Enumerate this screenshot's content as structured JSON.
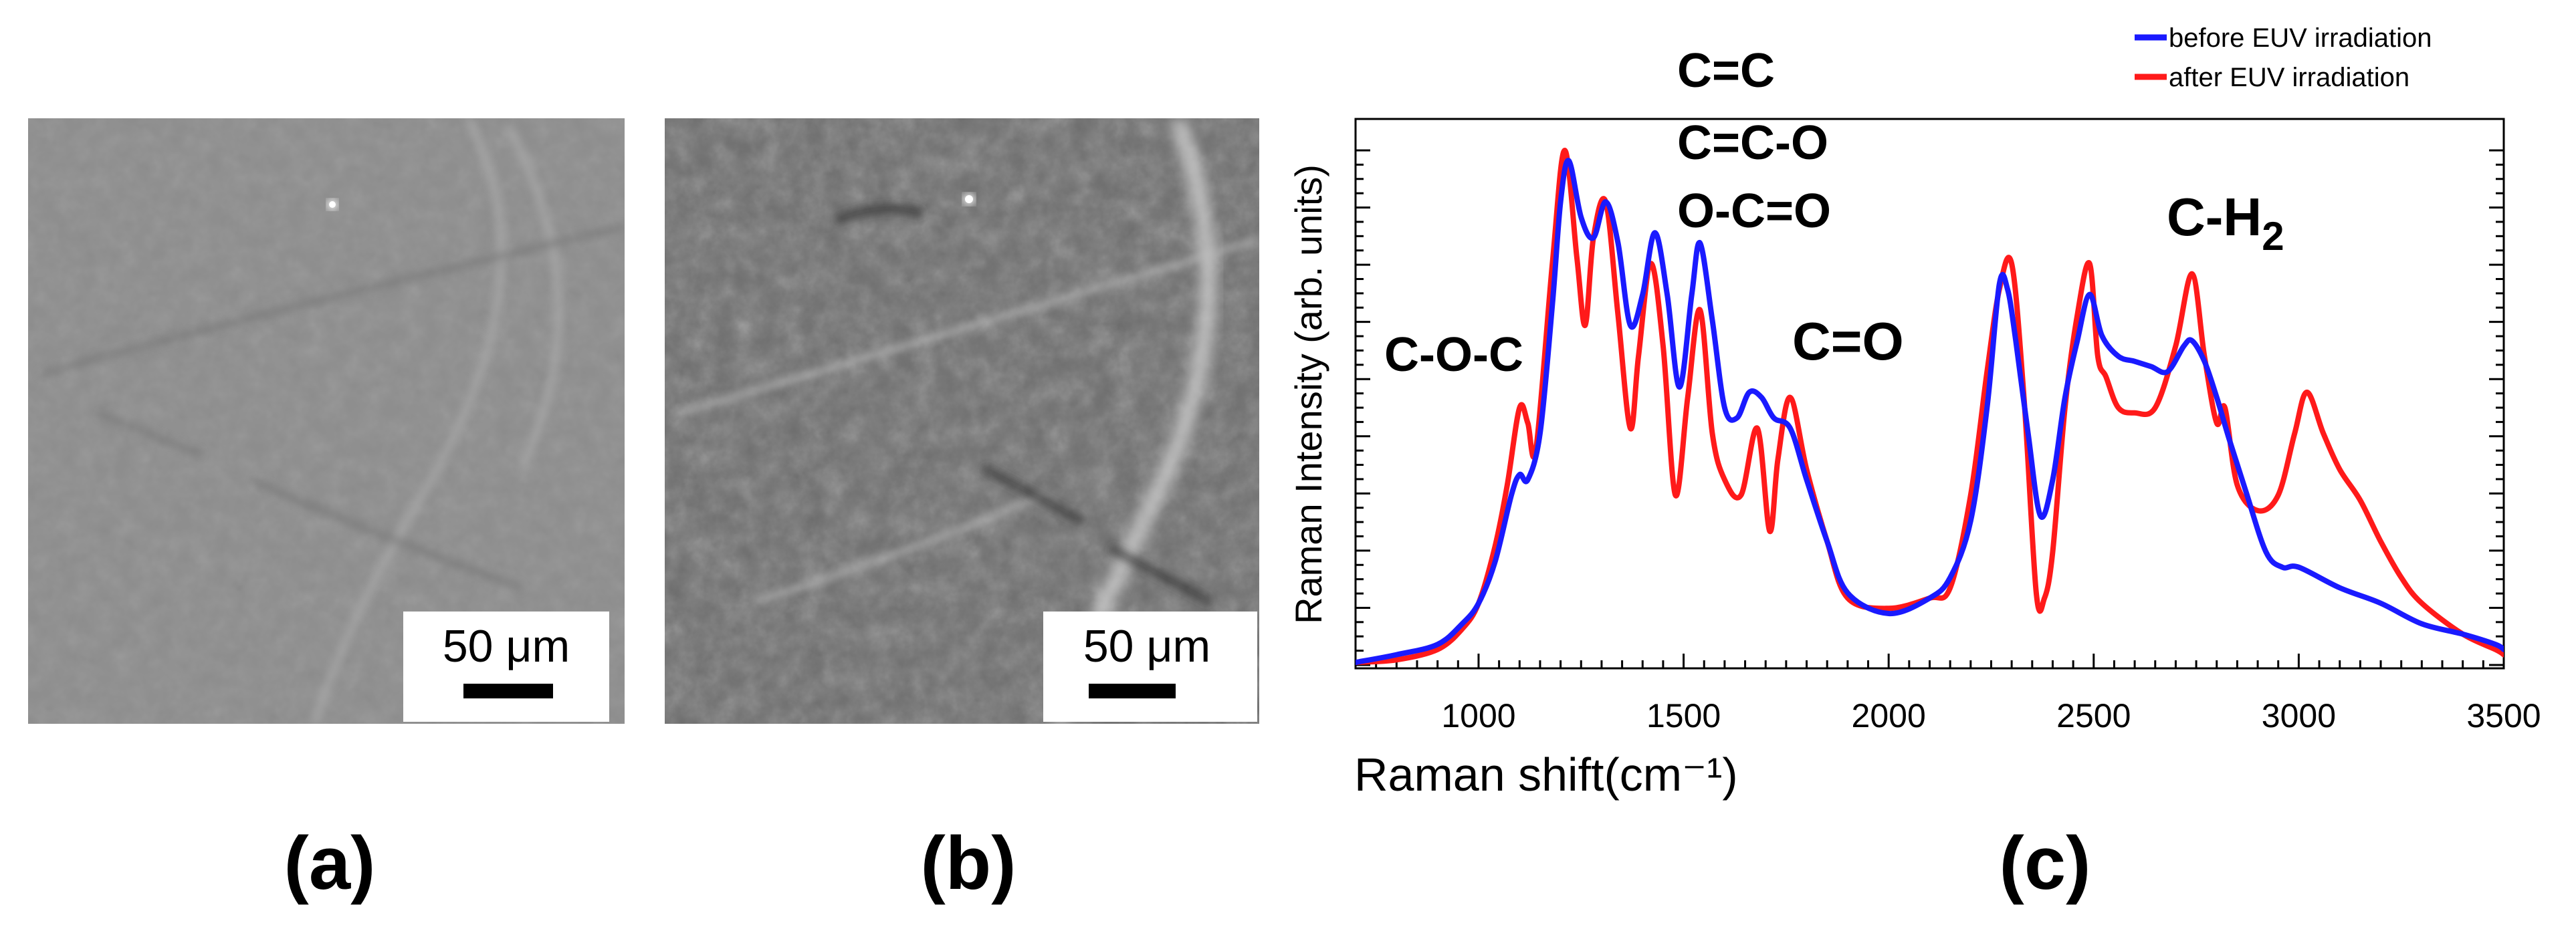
{
  "panels": {
    "a": {
      "label": "(a)",
      "scale_bar_text": "50 μm",
      "scale_bar_um": 50
    },
    "b": {
      "label": "(b)",
      "scale_bar_text": "50 μm",
      "scale_bar_um": 50
    },
    "c": {
      "label": "(c)"
    }
  },
  "chart_data": {
    "type": "line",
    "title": "",
    "xlabel": "Raman shift(cm⁻¹)",
    "ylabel": "Raman Intensity (arb. units)",
    "xlim": [
      700,
      3500
    ],
    "ylim": [
      0,
      1
    ],
    "x_ticks": [
      1000,
      1500,
      2000,
      2500,
      3000,
      3500
    ],
    "x_tick_labels": [
      "1000",
      "1500",
      "2000",
      "2500",
      "3000",
      "3500"
    ],
    "y_tick_labels_shown": false,
    "grid": false,
    "legend_position": "top-right",
    "colors": {
      "before": "#1a1aff",
      "after": "#ff1a1a"
    },
    "series": [
      {
        "name": "before EUV irradiation",
        "color": "#1a1aff",
        "x": [
          700,
          800,
          900,
          960,
          1000,
          1040,
          1080,
          1100,
          1120,
          1150,
          1180,
          1200,
          1220,
          1250,
          1280,
          1310,
          1340,
          1370,
          1400,
          1430,
          1460,
          1490,
          1520,
          1540,
          1570,
          1600,
          1630,
          1660,
          1690,
          1720,
          1760,
          1800,
          1850,
          1900,
          2000,
          2100,
          2150,
          2200,
          2240,
          2270,
          2290,
          2310,
          2340,
          2370,
          2400,
          2430,
          2460,
          2490,
          2520,
          2560,
          2600,
          2640,
          2680,
          2720,
          2740,
          2770,
          2800,
          2830,
          2870,
          2920,
          2960,
          3000,
          3100,
          3200,
          3300,
          3400,
          3480,
          3500
        ],
        "values": [
          0.005,
          0.02,
          0.04,
          0.08,
          0.12,
          0.2,
          0.33,
          0.37,
          0.36,
          0.45,
          0.7,
          0.9,
          0.98,
          0.87,
          0.83,
          0.9,
          0.82,
          0.66,
          0.72,
          0.84,
          0.72,
          0.54,
          0.72,
          0.82,
          0.67,
          0.5,
          0.48,
          0.53,
          0.52,
          0.48,
          0.46,
          0.36,
          0.24,
          0.14,
          0.1,
          0.13,
          0.17,
          0.28,
          0.5,
          0.74,
          0.73,
          0.63,
          0.45,
          0.29,
          0.36,
          0.52,
          0.63,
          0.72,
          0.64,
          0.6,
          0.59,
          0.58,
          0.57,
          0.62,
          0.63,
          0.59,
          0.52,
          0.44,
          0.34,
          0.22,
          0.19,
          0.19,
          0.15,
          0.12,
          0.08,
          0.06,
          0.04,
          0.03
        ]
      },
      {
        "name": "after EUV irradiation",
        "color": "#ff1a1a",
        "x": [
          700,
          800,
          900,
          960,
          1000,
          1040,
          1070,
          1100,
          1120,
          1140,
          1180,
          1210,
          1240,
          1260,
          1280,
          1310,
          1340,
          1370,
          1390,
          1420,
          1450,
          1480,
          1510,
          1540,
          1570,
          1600,
          1640,
          1680,
          1710,
          1730,
          1760,
          1800,
          1850,
          1900,
          2000,
          2100,
          2150,
          2200,
          2240,
          2270,
          2300,
          2330,
          2360,
          2380,
          2400,
          2430,
          2460,
          2490,
          2510,
          2530,
          2560,
          2600,
          2650,
          2700,
          2740,
          2770,
          2800,
          2820,
          2850,
          2900,
          2950,
          2990,
          3020,
          3060,
          3100,
          3150,
          3200,
          3250,
          3300,
          3400,
          3480,
          3500
        ],
        "values": [
          0.005,
          0.01,
          0.03,
          0.07,
          0.12,
          0.23,
          0.35,
          0.5,
          0.47,
          0.42,
          0.78,
          1.0,
          0.79,
          0.66,
          0.83,
          0.9,
          0.68,
          0.46,
          0.6,
          0.78,
          0.62,
          0.33,
          0.52,
          0.69,
          0.45,
          0.36,
          0.33,
          0.46,
          0.26,
          0.4,
          0.52,
          0.38,
          0.24,
          0.13,
          0.11,
          0.13,
          0.15,
          0.33,
          0.57,
          0.73,
          0.78,
          0.52,
          0.14,
          0.13,
          0.22,
          0.5,
          0.68,
          0.78,
          0.6,
          0.56,
          0.5,
          0.49,
          0.5,
          0.62,
          0.76,
          0.6,
          0.47,
          0.5,
          0.35,
          0.3,
          0.33,
          0.45,
          0.53,
          0.45,
          0.38,
          0.32,
          0.24,
          0.17,
          0.12,
          0.06,
          0.03,
          0.02
        ]
      }
    ],
    "annotations": [
      {
        "text": "C-O-C"
      },
      {
        "text": "C=C"
      },
      {
        "text": "C=C-O"
      },
      {
        "text": "O-C=O"
      },
      {
        "text": "C=O"
      },
      {
        "text": "C-H",
        "subscript": "2"
      }
    ]
  }
}
